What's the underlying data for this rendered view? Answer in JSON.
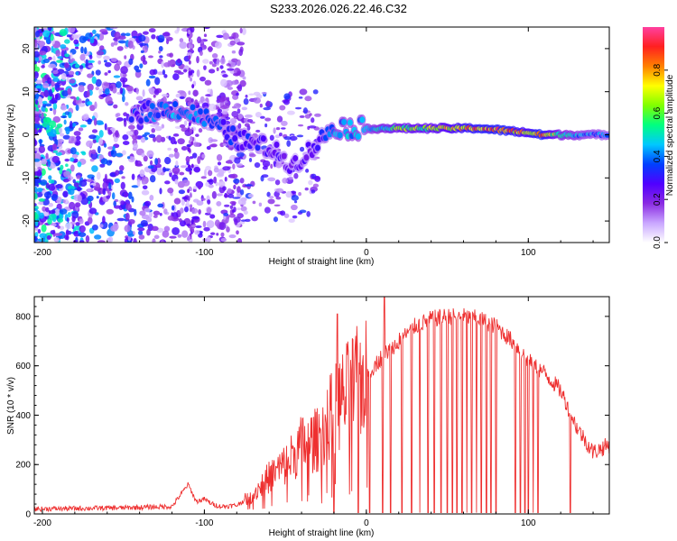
{
  "title": "S233.2026.026.22.46.C32",
  "colors": {
    "snr_line": "#ee3030",
    "axis": "#000000",
    "background": "#ffffff"
  },
  "chart_data": [
    {
      "type": "heatmap",
      "name": "spectrogram",
      "xlabel": "Height of straight line (km)",
      "ylabel": "Frequency (Hz)",
      "xlim": [
        -205,
        150
      ],
      "ylim": [
        -25,
        25
      ],
      "xticks": [
        -200,
        -100,
        0,
        100
      ],
      "yticks": [
        -20,
        -10,
        0,
        10,
        20
      ],
      "xtick_labels": [
        "-200",
        "-100",
        "0",
        "100"
      ],
      "ytick_labels": [
        "-20",
        "-10",
        "0",
        "10",
        "20"
      ],
      "colorbar": {
        "label": "Normalized spectral amplitude",
        "range": [
          0,
          1
        ],
        "ticks": [
          0.0,
          0.2,
          0.4,
          0.6,
          0.8
        ],
        "tick_labels": [
          "0.0",
          "0.2",
          "0.4",
          "0.6",
          "0.8"
        ],
        "colormap": [
          "#ffffff",
          "#c9a6ff",
          "#8a2be2",
          "#5000ff",
          "#0040ff",
          "#00c8ff",
          "#00ff80",
          "#80ff00",
          "#ffff00",
          "#ff8000",
          "#ff2020",
          "#ff40a0"
        ]
      },
      "ridge": [
        {
          "x": -145,
          "f": 5.0,
          "a": 0.35
        },
        {
          "x": -118,
          "f": 6.0,
          "a": 0.45
        },
        {
          "x": -100,
          "f": 4.0,
          "a": 0.4
        },
        {
          "x": -80,
          "f": -1.0,
          "a": 0.35
        },
        {
          "x": -60,
          "f": -3.0,
          "a": 0.3
        },
        {
          "x": -45,
          "f": -7.0,
          "a": 0.25
        },
        {
          "x": -30,
          "f": -2.0,
          "a": 0.3
        },
        {
          "x": -20,
          "f": 2.0,
          "a": 0.45
        },
        {
          "x": -10,
          "f": 1.5,
          "a": 0.5
        },
        {
          "x": 0,
          "f": 1.5,
          "a": 0.45
        },
        {
          "x": 20,
          "f": 1.5,
          "a": 0.65
        },
        {
          "x": 40,
          "f": 1.5,
          "a": 0.7
        },
        {
          "x": 60,
          "f": 1.5,
          "a": 0.85
        },
        {
          "x": 70,
          "f": 1.5,
          "a": 0.9
        },
        {
          "x": 85,
          "f": 1.0,
          "a": 0.92
        },
        {
          "x": 100,
          "f": 0.5,
          "a": 0.8
        },
        {
          "x": 108,
          "f": 0.0,
          "a": 0.95
        },
        {
          "x": 120,
          "f": 0.0,
          "a": 0.55
        },
        {
          "x": 135,
          "f": 0.0,
          "a": 0.45
        },
        {
          "x": 150,
          "f": 0.0,
          "a": 0.4
        }
      ]
    },
    {
      "type": "line",
      "name": "snr",
      "xlabel": "Height of straight line (km)",
      "ylabel": "SNR (10 * v/v)",
      "xlim": [
        -205,
        150
      ],
      "ylim": [
        0,
        880
      ],
      "xticks": [
        -200,
        -100,
        0,
        100
      ],
      "yticks": [
        0,
        200,
        400,
        600,
        800
      ],
      "xtick_labels": [
        "-200",
        "-100",
        "0",
        "100"
      ],
      "ytick_labels": [
        "0",
        "200",
        "400",
        "600",
        "800"
      ],
      "series": [
        {
          "name": "SNR",
          "x": [
            -205,
            -150,
            -120,
            -110,
            -105,
            -100,
            -95,
            -90,
            -80,
            -70,
            -60,
            -50,
            -40,
            -30,
            -20,
            -10,
            0,
            10,
            20,
            30,
            40,
            50,
            60,
            70,
            80,
            90,
            100,
            110,
            120,
            130,
            140,
            150
          ],
          "y": [
            20,
            25,
            30,
            120,
            50,
            60,
            40,
            30,
            35,
            80,
            150,
            200,
            280,
            300,
            420,
            500,
            560,
            640,
            700,
            760,
            790,
            800,
            800,
            790,
            760,
            700,
            620,
            570,
            500,
            350,
            250,
            280
          ]
        }
      ],
      "dropouts_x": [
        -20,
        -5,
        2,
        10,
        15,
        22,
        28,
        33,
        38,
        42,
        46,
        50,
        53,
        56,
        59,
        62,
        65,
        68,
        71,
        74,
        77,
        80,
        92,
        95,
        98,
        100,
        103,
        106,
        126
      ],
      "spikes": [
        {
          "x": -18,
          "y": 810
        },
        {
          "x": 11,
          "y": 880
        }
      ]
    }
  ]
}
